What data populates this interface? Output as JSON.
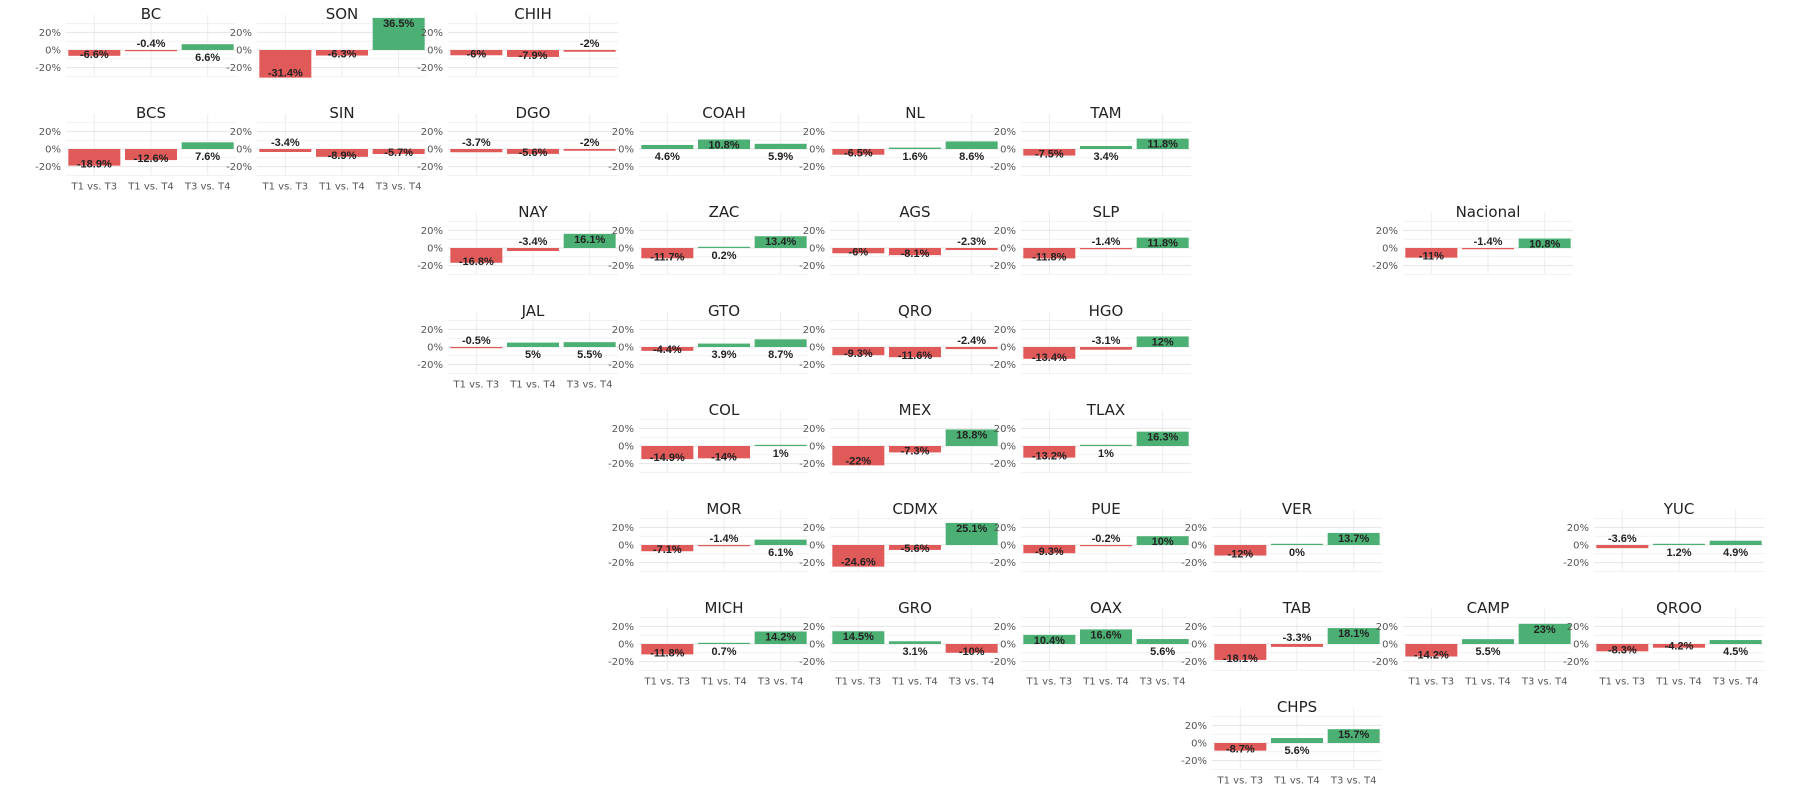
{
  "chart_data": {
    "type": "bar",
    "categories": [
      "T1 vs. T3",
      "T1 vs. T4",
      "T3 vs. T4"
    ],
    "ylim": [
      -30,
      40
    ],
    "yticks": [
      "20%",
      "0%",
      "-20%"
    ],
    "colors": {
      "negative": "#e05a5a",
      "positive": "#4caf73"
    },
    "grid": true,
    "panels": [
      {
        "name": "BC",
        "values": [
          -6.6,
          -0.4,
          6.6
        ],
        "labels": [
          "-6.6%",
          "-0.4%",
          "6.6%"
        ],
        "show_x_ticks": false
      },
      {
        "name": "SON",
        "values": [
          -31.4,
          -6.3,
          36.5
        ],
        "labels": [
          "-31.4%",
          "-6.3%",
          "36.5%"
        ],
        "show_x_ticks": false
      },
      {
        "name": "CHIH",
        "values": [
          -6,
          -7.9,
          -2
        ],
        "labels": [
          "-6%",
          "-7.9%",
          "-2%"
        ],
        "show_x_ticks": false
      },
      {
        "name": "BCS",
        "values": [
          -18.9,
          -12.6,
          7.6
        ],
        "labels": [
          "-18.9%",
          "-12.6%",
          "7.6%"
        ],
        "show_x_ticks": true
      },
      {
        "name": "SIN",
        "values": [
          -3.4,
          -8.9,
          -5.7
        ],
        "labels": [
          "-3.4%",
          "-8.9%",
          "-5.7%"
        ],
        "show_x_ticks": true
      },
      {
        "name": "DGO",
        "values": [
          -3.7,
          -5.6,
          -2
        ],
        "labels": [
          "-3.7%",
          "-5.6%",
          "-2%"
        ],
        "show_x_ticks": false
      },
      {
        "name": "COAH",
        "values": [
          4.6,
          10.8,
          5.9
        ],
        "labels": [
          "4.6%",
          "10.8%",
          "5.9%"
        ],
        "show_x_ticks": false
      },
      {
        "name": "NL",
        "values": [
          -6.5,
          1.6,
          8.6
        ],
        "labels": [
          "-6.5%",
          "1.6%",
          "8.6%"
        ],
        "show_x_ticks": false
      },
      {
        "name": "TAM",
        "values": [
          -7.5,
          3.4,
          11.8
        ],
        "labels": [
          "-7.5%",
          "3.4%",
          "11.8%"
        ],
        "show_x_ticks": false
      },
      {
        "name": "NAY",
        "values": [
          -16.8,
          -3.4,
          16.1
        ],
        "labels": [
          "-16.8%",
          "-3.4%",
          "16.1%"
        ],
        "show_x_ticks": false
      },
      {
        "name": "ZAC",
        "values": [
          -11.7,
          0.2,
          13.4
        ],
        "labels": [
          "-11.7%",
          "0.2%",
          "13.4%"
        ],
        "show_x_ticks": false
      },
      {
        "name": "AGS",
        "values": [
          -6,
          -8.1,
          -2.3
        ],
        "labels": [
          "-6%",
          "-8.1%",
          "-2.3%"
        ],
        "show_x_ticks": false
      },
      {
        "name": "SLP",
        "values": [
          -11.8,
          -1.4,
          11.8
        ],
        "labels": [
          "-11.8%",
          "-1.4%",
          "11.8%"
        ],
        "show_x_ticks": false
      },
      {
        "name": "Nacional",
        "values": [
          -11,
          -1.4,
          10.8
        ],
        "labels": [
          "-11%",
          "-1.4%",
          "10.8%"
        ],
        "show_x_ticks": false
      },
      {
        "name": "JAL",
        "values": [
          -0.5,
          5,
          5.5
        ],
        "labels": [
          "-0.5%",
          "5%",
          "5.5%"
        ],
        "show_x_ticks": true
      },
      {
        "name": "GTO",
        "values": [
          -4.4,
          3.9,
          8.7
        ],
        "labels": [
          "-4.4%",
          "3.9%",
          "8.7%"
        ],
        "show_x_ticks": false
      },
      {
        "name": "QRO",
        "values": [
          -9.3,
          -11.6,
          -2.4
        ],
        "labels": [
          "-9.3%",
          "-11.6%",
          "-2.4%"
        ],
        "show_x_ticks": false
      },
      {
        "name": "HGO",
        "values": [
          -13.4,
          -3.1,
          12
        ],
        "labels": [
          "-13.4%",
          "-3.1%",
          "12%"
        ],
        "show_x_ticks": false
      },
      {
        "name": "COL",
        "values": [
          -14.9,
          -14,
          1
        ],
        "labels": [
          "-14.9%",
          "-14%",
          "1%"
        ],
        "show_x_ticks": false
      },
      {
        "name": "MEX",
        "values": [
          -22,
          -7.3,
          18.8
        ],
        "labels": [
          "-22%",
          "-7.3%",
          "18.8%"
        ],
        "show_x_ticks": false
      },
      {
        "name": "TLAX",
        "values": [
          -13.2,
          1,
          16.3
        ],
        "labels": [
          "-13.2%",
          "1%",
          "16.3%"
        ],
        "show_x_ticks": false
      },
      {
        "name": "MOR",
        "values": [
          -7.1,
          -1.4,
          6.1
        ],
        "labels": [
          "-7.1%",
          "-1.4%",
          "6.1%"
        ],
        "show_x_ticks": false
      },
      {
        "name": "CDMX",
        "values": [
          -24.6,
          -5.6,
          25.1
        ],
        "labels": [
          "-24.6%",
          "-5.6%",
          "25.1%"
        ],
        "show_x_ticks": false
      },
      {
        "name": "PUE",
        "values": [
          -9.3,
          -0.2,
          10
        ],
        "labels": [
          "-9.3%",
          "-0.2%",
          "10%"
        ],
        "show_x_ticks": false
      },
      {
        "name": "VER",
        "values": [
          -12,
          0,
          13.7
        ],
        "labels": [
          "-12%",
          "0%",
          "13.7%"
        ],
        "show_x_ticks": false
      },
      {
        "name": "YUC",
        "values": [
          -3.6,
          1.2,
          4.9
        ],
        "labels": [
          "-3.6%",
          "1.2%",
          "4.9%"
        ],
        "show_x_ticks": false
      },
      {
        "name": "MICH",
        "values": [
          -11.8,
          0.7,
          14.2
        ],
        "labels": [
          "-11.8%",
          "0.7%",
          "14.2%"
        ],
        "show_x_ticks": true
      },
      {
        "name": "GRO",
        "values": [
          14.5,
          3.1,
          -10
        ],
        "labels": [
          "14.5%",
          "3.1%",
          "-10%"
        ],
        "show_x_ticks": true
      },
      {
        "name": "OAX",
        "values": [
          10.4,
          16.6,
          5.6
        ],
        "labels": [
          "10.4%",
          "16.6%",
          "5.6%"
        ],
        "show_x_ticks": true
      },
      {
        "name": "TAB",
        "values": [
          -18.1,
          -3.3,
          18.1
        ],
        "labels": [
          "-18.1%",
          "-3.3%",
          "18.1%"
        ],
        "show_x_ticks": false
      },
      {
        "name": "CAMP",
        "values": [
          -14.2,
          5.5,
          23
        ],
        "labels": [
          "-14.2%",
          "5.5%",
          "23%"
        ],
        "show_x_ticks": true
      },
      {
        "name": "QROO",
        "values": [
          -8.3,
          -4.2,
          4.5
        ],
        "labels": [
          "-8.3%",
          "-4.2%",
          "4.5%"
        ],
        "show_x_ticks": true
      },
      {
        "name": "CHPS",
        "values": [
          -8.7,
          5.6,
          15.7
        ],
        "labels": [
          "-8.7%",
          "5.6%",
          "15.7%"
        ],
        "show_x_ticks": true
      }
    ]
  }
}
